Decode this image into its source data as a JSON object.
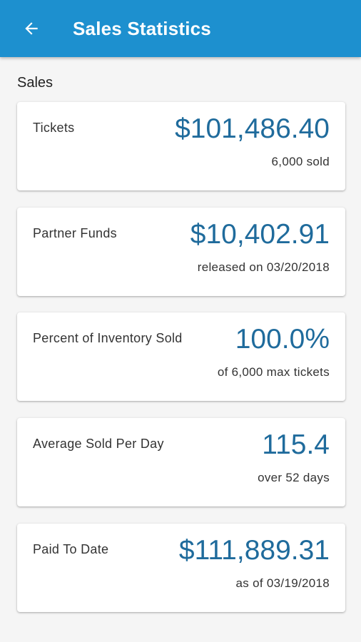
{
  "header": {
    "title": "Sales Statistics",
    "back_icon": "arrow-back-icon",
    "background_color": "#1d90cf"
  },
  "section": {
    "label": "Sales"
  },
  "cards": [
    {
      "label": "Tickets",
      "value": "$101,486.40",
      "sub": "6,000 sold"
    },
    {
      "label": "Partner Funds",
      "value": "$10,402.91",
      "sub": "released on 03/20/2018"
    },
    {
      "label": "Percent of Inventory Sold",
      "value": "100.0%",
      "sub": "of 6,000 max tickets"
    },
    {
      "label": "Average Sold Per Day",
      "value": "115.4",
      "sub": "over 52 days"
    },
    {
      "label": "Paid To Date",
      "value": "$111,889.31",
      "sub": "as of 03/19/2018"
    }
  ],
  "colors": {
    "value_text": "#1f6b9c",
    "page_background": "#f5f5f5"
  }
}
